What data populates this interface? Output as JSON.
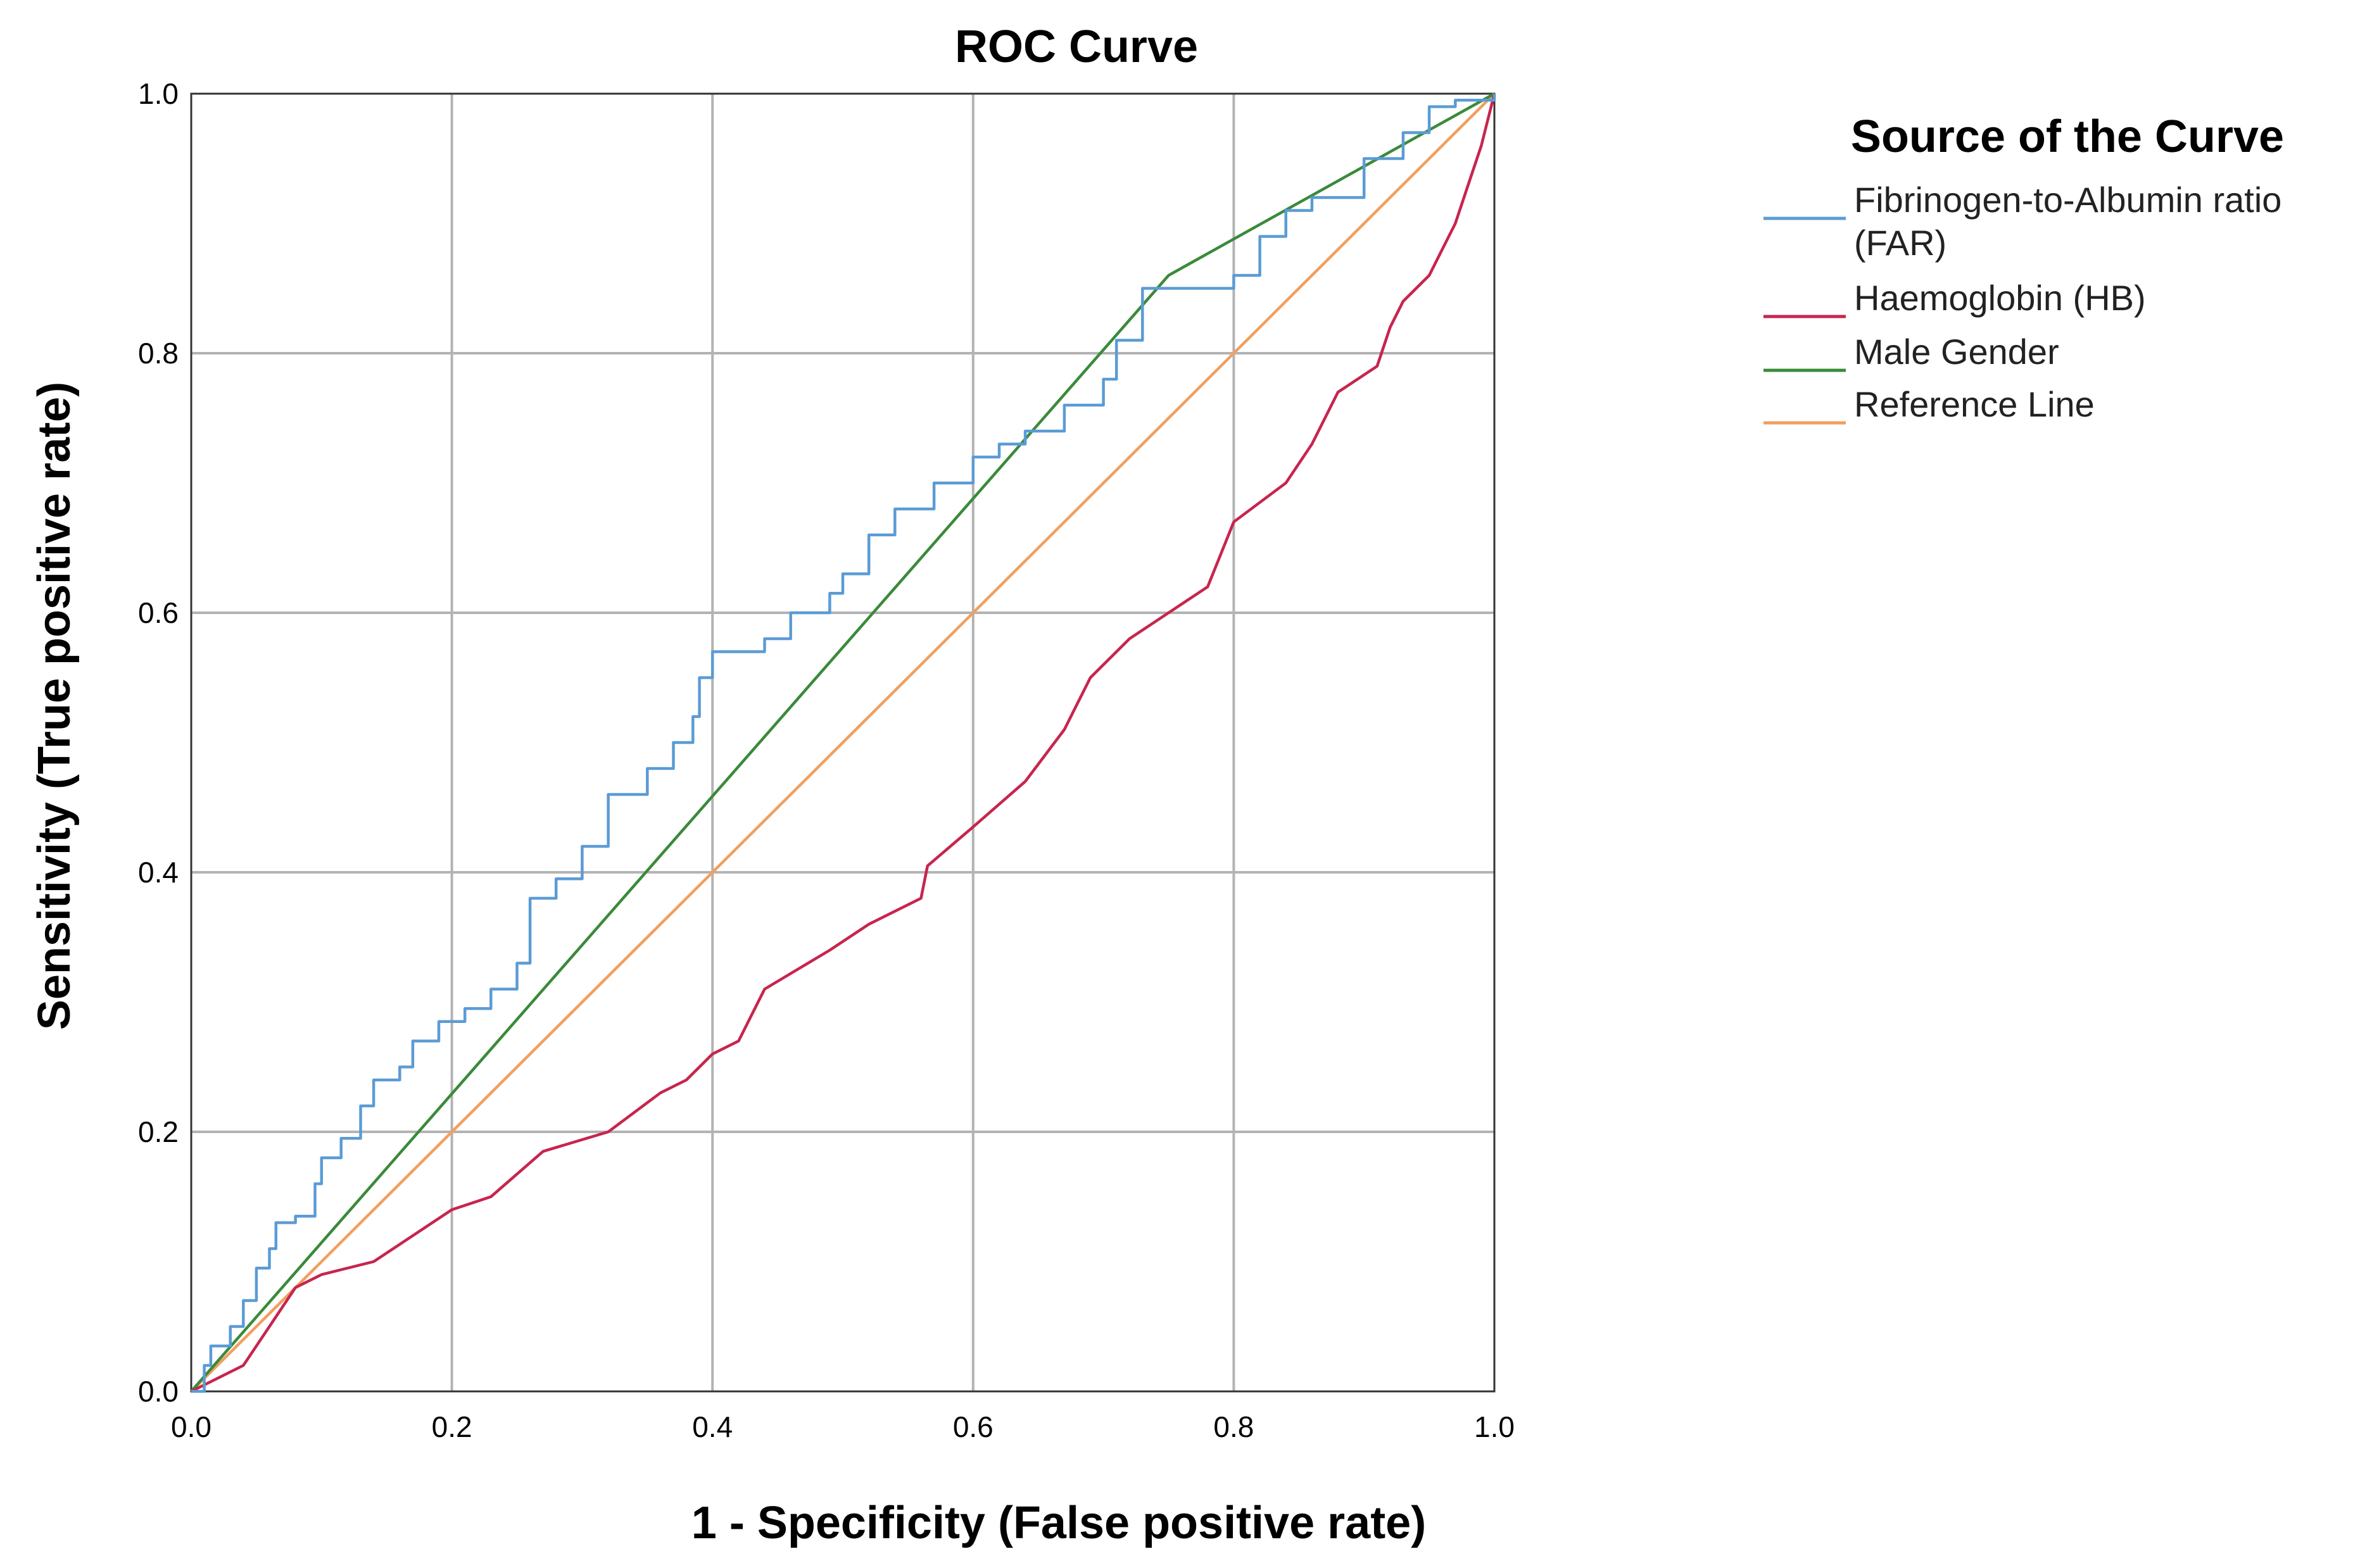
{
  "chart_data": {
    "type": "line",
    "title": "ROC Curve",
    "xlabel": "1 - Specificity (False positive rate)",
    "ylabel": "Sensitivity (True positive rate)",
    "xlim": [
      0,
      1
    ],
    "ylim": [
      0,
      1
    ],
    "xticks": [
      "0.0",
      "0.2",
      "0.4",
      "0.6",
      "0.8",
      "1.0"
    ],
    "yticks": [
      "0.0",
      "0.2",
      "0.4",
      "0.6",
      "0.8",
      "1.0"
    ],
    "grid": true,
    "legend": {
      "title": "Source of the Curve",
      "placement": "right",
      "entries": [
        {
          "lines": [
            "Fibrinogen-to-Albumin ratio",
            "(FAR)"
          ]
        },
        {
          "lines": [
            "Haemoglobin (HB)"
          ]
        },
        {
          "lines": [
            "Male Gender"
          ]
        },
        {
          "lines": [
            "Reference Line"
          ]
        }
      ]
    },
    "series": [
      {
        "name": "Fibrinogen-to-Albumin ratio (FAR)",
        "color": "#5b9bd5",
        "step": true,
        "points": [
          [
            0,
            0
          ],
          [
            0.01,
            0.02
          ],
          [
            0.015,
            0.035
          ],
          [
            0.03,
            0.05
          ],
          [
            0.04,
            0.07
          ],
          [
            0.05,
            0.095
          ],
          [
            0.06,
            0.11
          ],
          [
            0.065,
            0.13
          ],
          [
            0.08,
            0.135
          ],
          [
            0.095,
            0.16
          ],
          [
            0.1,
            0.18
          ],
          [
            0.115,
            0.195
          ],
          [
            0.13,
            0.22
          ],
          [
            0.14,
            0.24
          ],
          [
            0.16,
            0.25
          ],
          [
            0.17,
            0.27
          ],
          [
            0.19,
            0.285
          ],
          [
            0.21,
            0.295
          ],
          [
            0.23,
            0.31
          ],
          [
            0.25,
            0.33
          ],
          [
            0.26,
            0.38
          ],
          [
            0.28,
            0.395
          ],
          [
            0.3,
            0.42
          ],
          [
            0.32,
            0.46
          ],
          [
            0.35,
            0.48
          ],
          [
            0.37,
            0.5
          ],
          [
            0.385,
            0.52
          ],
          [
            0.39,
            0.55
          ],
          [
            0.4,
            0.57
          ],
          [
            0.44,
            0.58
          ],
          [
            0.46,
            0.6
          ],
          [
            0.49,
            0.615
          ],
          [
            0.5,
            0.63
          ],
          [
            0.52,
            0.66
          ],
          [
            0.54,
            0.68
          ],
          [
            0.57,
            0.7
          ],
          [
            0.6,
            0.72
          ],
          [
            0.62,
            0.73
          ],
          [
            0.64,
            0.74
          ],
          [
            0.67,
            0.76
          ],
          [
            0.7,
            0.78
          ],
          [
            0.71,
            0.81
          ],
          [
            0.73,
            0.85
          ],
          [
            0.78,
            0.85
          ],
          [
            0.8,
            0.86
          ],
          [
            0.82,
            0.89
          ],
          [
            0.84,
            0.91
          ],
          [
            0.86,
            0.92
          ],
          [
            0.9,
            0.95
          ],
          [
            0.93,
            0.97
          ],
          [
            0.95,
            0.99
          ],
          [
            0.97,
            0.995
          ],
          [
            1,
            1
          ]
        ]
      },
      {
        "name": "Haemoglobin (HB)",
        "color": "#c7254e",
        "step": false,
        "points": [
          [
            0,
            0
          ],
          [
            0.02,
            0.01
          ],
          [
            0.04,
            0.02
          ],
          [
            0.06,
            0.05
          ],
          [
            0.08,
            0.08
          ],
          [
            0.1,
            0.09
          ],
          [
            0.14,
            0.1
          ],
          [
            0.17,
            0.12
          ],
          [
            0.2,
            0.14
          ],
          [
            0.23,
            0.15
          ],
          [
            0.27,
            0.185
          ],
          [
            0.32,
            0.2
          ],
          [
            0.36,
            0.23
          ],
          [
            0.38,
            0.24
          ],
          [
            0.4,
            0.26
          ],
          [
            0.42,
            0.27
          ],
          [
            0.44,
            0.31
          ],
          [
            0.49,
            0.34
          ],
          [
            0.52,
            0.36
          ],
          [
            0.56,
            0.38
          ],
          [
            0.565,
            0.405
          ],
          [
            0.6,
            0.435
          ],
          [
            0.64,
            0.47
          ],
          [
            0.67,
            0.51
          ],
          [
            0.68,
            0.53
          ],
          [
            0.69,
            0.55
          ],
          [
            0.72,
            0.58
          ],
          [
            0.75,
            0.6
          ],
          [
            0.78,
            0.62
          ],
          [
            0.8,
            0.67
          ],
          [
            0.84,
            0.7
          ],
          [
            0.86,
            0.73
          ],
          [
            0.88,
            0.77
          ],
          [
            0.91,
            0.79
          ],
          [
            0.92,
            0.82
          ],
          [
            0.93,
            0.84
          ],
          [
            0.95,
            0.86
          ],
          [
            0.97,
            0.9
          ],
          [
            0.98,
            0.93
          ],
          [
            0.99,
            0.96
          ],
          [
            1,
            1
          ]
        ]
      },
      {
        "name": "Male Gender",
        "color": "#3a8a3a",
        "step": false,
        "points": [
          [
            0,
            0
          ],
          [
            0.75,
            0.86
          ],
          [
            1,
            1
          ]
        ]
      },
      {
        "name": "Reference Line",
        "color": "#f0a060",
        "step": false,
        "points": [
          [
            0,
            0
          ],
          [
            1,
            1
          ]
        ]
      }
    ]
  }
}
